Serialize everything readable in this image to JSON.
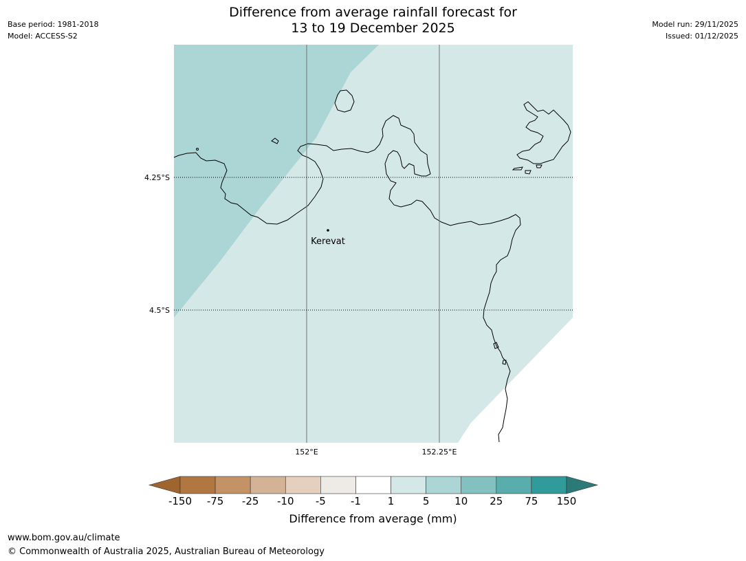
{
  "title": {
    "line1": "Difference from average rainfall forecast for",
    "line2": "13 to 19 December 2025"
  },
  "meta_left": {
    "base_period": "Base period: 1981-2018",
    "model": "Model: ACCESS-S2"
  },
  "meta_right": {
    "model_run": "Model run: 29/11/2025",
    "issued": "Issued: 01/12/2025"
  },
  "map": {
    "lat_labels": [
      "4.25°S",
      "4.5°S"
    ],
    "lon_labels": [
      "152°E",
      "152.25°E"
    ],
    "place": "Kerevat",
    "fill_colors": {
      "light_band": "#d5e8e8",
      "mid_band": "#acd5d5"
    }
  },
  "colorbar": {
    "label": "Difference from average (mm)",
    "ticks": [
      "-150",
      "-75",
      "-25",
      "-10",
      "-5",
      "-1",
      "1",
      "5",
      "10",
      "25",
      "75",
      "150"
    ],
    "colors": [
      "#a0652e",
      "#b07740",
      "#c39366",
      "#d4b295",
      "#e5d0bf",
      "#eeebe7",
      "#ffffff",
      "#d5e8e8",
      "#acd5d5",
      "#82c1bf",
      "#5aadad",
      "#319a9a",
      "#2b7a78"
    ]
  },
  "footer": {
    "url": "www.bom.gov.au/climate",
    "copyright": "© Commonwealth of Australia 2025, Australian Bureau of Meteorology"
  }
}
